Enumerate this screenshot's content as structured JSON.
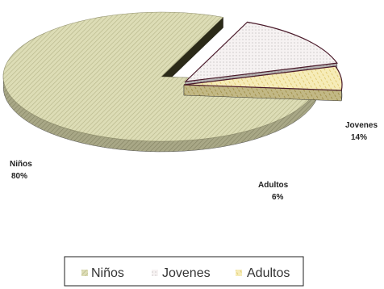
{
  "chart_data": {
    "type": "pie",
    "title": "",
    "categories": [
      "Niños",
      "Jovenes",
      "Adultos"
    ],
    "values": [
      80,
      14,
      6
    ],
    "value_labels": [
      "80%",
      "14%",
      "6%"
    ],
    "colors": [
      "#d9d8b0",
      "#f4efef",
      "#f2e7a8"
    ],
    "legend": {
      "position": "bottom",
      "entries": [
        "Niños",
        "Jovenes",
        "Adultos"
      ]
    },
    "exploded": true,
    "three_d": true
  }
}
